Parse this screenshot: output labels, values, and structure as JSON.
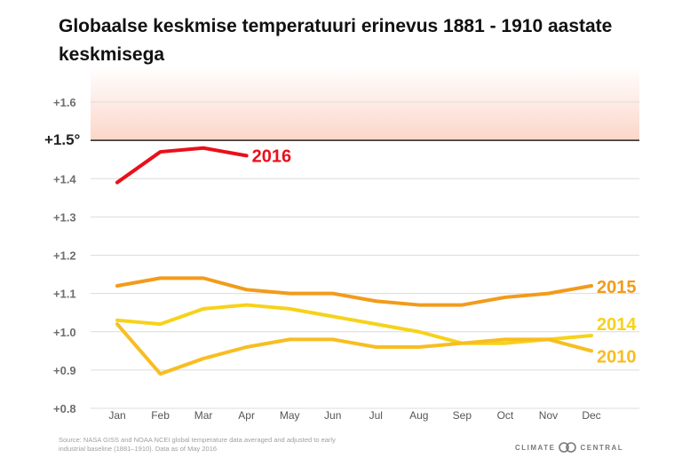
{
  "title": "Globaalse keskmise temperatuuri erinevus 1881 - 1910 aastate keskmisega",
  "source": "Source: NASA GISS and NOAA NCEI global temperature data averaged and adjusted to early industrial baseline (1881–1910). Data as of May 2016",
  "brand": {
    "left": "CLIMATE",
    "right": "CENTRAL"
  },
  "chart_data": {
    "type": "line",
    "categories": [
      "Jan",
      "Feb",
      "Mar",
      "Apr",
      "May",
      "Jun",
      "Jul",
      "Aug",
      "Sep",
      "Oct",
      "Nov",
      "Dec"
    ],
    "y_ticks": [
      "+0.8",
      "+0.9",
      "+1.0",
      "+1.1",
      "+1.2",
      "+1.3",
      "+1.4",
      "+1.5°",
      "+1.6"
    ],
    "ylim": [
      0.8,
      1.6
    ],
    "threshold": 1.5,
    "series": [
      {
        "name": "2016",
        "color": "#e8101a",
        "values": [
          1.39,
          1.47,
          1.48,
          1.46,
          null,
          null,
          null,
          null,
          null,
          null,
          null,
          null
        ]
      },
      {
        "name": "2015",
        "color": "#f29b1a",
        "values": [
          1.12,
          1.14,
          1.14,
          1.11,
          1.1,
          1.1,
          1.08,
          1.07,
          1.07,
          1.09,
          1.1,
          1.12
        ]
      },
      {
        "name": "2014",
        "color": "#f6d21a",
        "values": [
          1.03,
          1.02,
          1.06,
          1.07,
          1.06,
          1.04,
          1.02,
          1.0,
          0.97,
          0.97,
          0.98,
          0.99
        ]
      },
      {
        "name": "2010",
        "color": "#f8bd20",
        "values": [
          1.02,
          0.89,
          0.93,
          0.96,
          0.98,
          0.98,
          0.96,
          0.96,
          0.97,
          0.98,
          0.98,
          0.95
        ]
      }
    ]
  }
}
